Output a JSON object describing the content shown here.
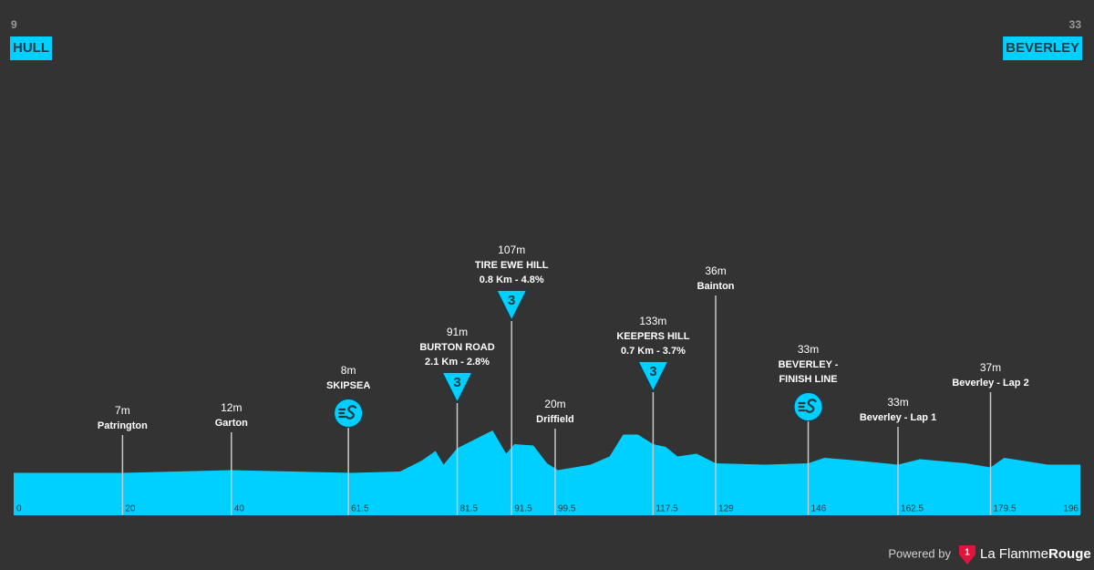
{
  "chart_data": {
    "type": "elevation-profile",
    "start": {
      "altitude": 9,
      "name": "HULL"
    },
    "finish": {
      "altitude": 33,
      "name": "BEVERLEY"
    },
    "color": "#00d0ff",
    "xlim": [
      0,
      196
    ],
    "ylim": [
      0,
      200
    ],
    "xticks": [
      0,
      20,
      40,
      61.5,
      81.5,
      91.5,
      99.5,
      117.5,
      129,
      146,
      162.5,
      179.5,
      196
    ],
    "profile": {
      "km": [
        0,
        20,
        40,
        62,
        71,
        75,
        77.5,
        79,
        81.5,
        84.5,
        88,
        90.5,
        92,
        95.5,
        98,
        100,
        106,
        109.5,
        112,
        114.7,
        117.5,
        119.8,
        122,
        125.5,
        129,
        138,
        146,
        149,
        155,
        162.5,
        166.5,
        175,
        179.5,
        182,
        190,
        196
      ],
      "elevation": [
        31,
        31,
        33,
        31,
        32,
        40,
        47,
        37,
        49,
        55,
        62,
        45,
        52,
        51,
        38,
        33,
        37,
        43,
        59,
        59,
        52,
        50,
        43,
        45,
        38,
        37,
        38,
        42,
        40,
        37,
        41,
        38,
        35,
        42,
        37,
        37
      ]
    },
    "markers": [
      {
        "km": 20,
        "altitude": "7m",
        "name": [
          "Patrington"
        ]
      },
      {
        "km": 40,
        "altitude": "12m",
        "name": [
          "Garton"
        ]
      },
      {
        "km": 61.5,
        "altitude": "8m",
        "name": [
          "SKIPSEA"
        ],
        "icon": "sprint"
      },
      {
        "km": 81.5,
        "altitude": "91m",
        "name": [
          "BURTON ROAD"
        ],
        "detail": "2.1 Km - 2.8%",
        "icon": "kom",
        "category": 3
      },
      {
        "km": 91.5,
        "altitude": "107m",
        "name": [
          "TIRE EWE HILL"
        ],
        "detail": "0.8 Km - 4.8%",
        "icon": "kom",
        "category": 3
      },
      {
        "km": 99.5,
        "altitude": "20m",
        "name": [
          "Driffield"
        ]
      },
      {
        "km": 117.5,
        "altitude": "133m",
        "name": [
          "KEEPERS HILL"
        ],
        "detail": "0.7 Km - 3.7%",
        "icon": "kom",
        "category": 3
      },
      {
        "km": 129,
        "altitude": "36m",
        "name": [
          "Bainton"
        ]
      },
      {
        "km": 146,
        "altitude": "33m",
        "name": [
          "BEVERLEY -",
          "FINISH LINE"
        ],
        "icon": "sprint"
      },
      {
        "km": 162.5,
        "altitude": "33m",
        "name": [
          "Beverley - Lap 1"
        ]
      },
      {
        "km": 179.5,
        "altitude": "37m",
        "name": [
          "Beverley - Lap 2"
        ]
      }
    ],
    "footer": {
      "powered": "Powered by",
      "logo": 1,
      "brand": "La Flamme",
      "brand_bold": "Rouge"
    }
  }
}
